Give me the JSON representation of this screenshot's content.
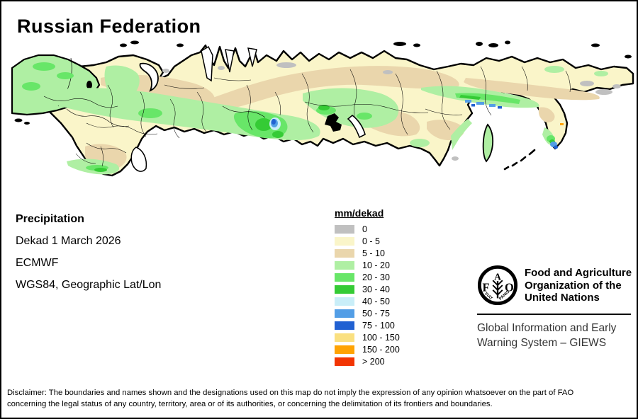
{
  "page": {
    "title": "Russian Federation",
    "background": "#FFFFFF",
    "border_color": "#000000"
  },
  "info_block": {
    "heading": "Precipitation",
    "lines": [
      "Dekad 1 March 2026",
      "ECMWF",
      "WGS84, Geographic Lat/Lon"
    ]
  },
  "legend": {
    "title": "mm/dekad",
    "items": [
      {
        "label": "0",
        "color": "#C0C0C0"
      },
      {
        "label": "0 - 5",
        "color": "#FAF5C9"
      },
      {
        "label": "5 - 10",
        "color": "#EAD6AC"
      },
      {
        "label": "10 - 20",
        "color": "#AFEFA3"
      },
      {
        "label": "20 - 30",
        "color": "#68E668"
      },
      {
        "label": "30 - 40",
        "color": "#35CB35"
      },
      {
        "label": "40 - 50",
        "color": "#C9EEF8"
      },
      {
        "label": "50 - 75",
        "color": "#539EE6"
      },
      {
        "label": "75 - 100",
        "color": "#2161D2"
      },
      {
        "label": "100 - 150",
        "color": "#FAE080"
      },
      {
        "label": "150 - 200",
        "color": "#FFA303"
      },
      {
        "label": "> 200",
        "color": "#F23503"
      }
    ]
  },
  "fao_block": {
    "logo": {
      "f": "F",
      "a": "A",
      "o": "O",
      "fiat": "FIAT",
      "panis": "PANIS"
    },
    "name_lines": [
      "Food and Agriculture",
      "Organization of the",
      "United Nations"
    ],
    "giews_lines": [
      "Global Information and Early",
      "Warning System – GIEWS"
    ]
  },
  "disclaimer": {
    "line1": "Disclaimer: The boundaries and names shown and the designations used on this map do not imply the expression of any opinion whatsoever on the part of FAO",
    "line2": "concerning the legal status of any country, territory, area or of its authorities, or concerning the delimitation of its frontiers and boundaries."
  }
}
